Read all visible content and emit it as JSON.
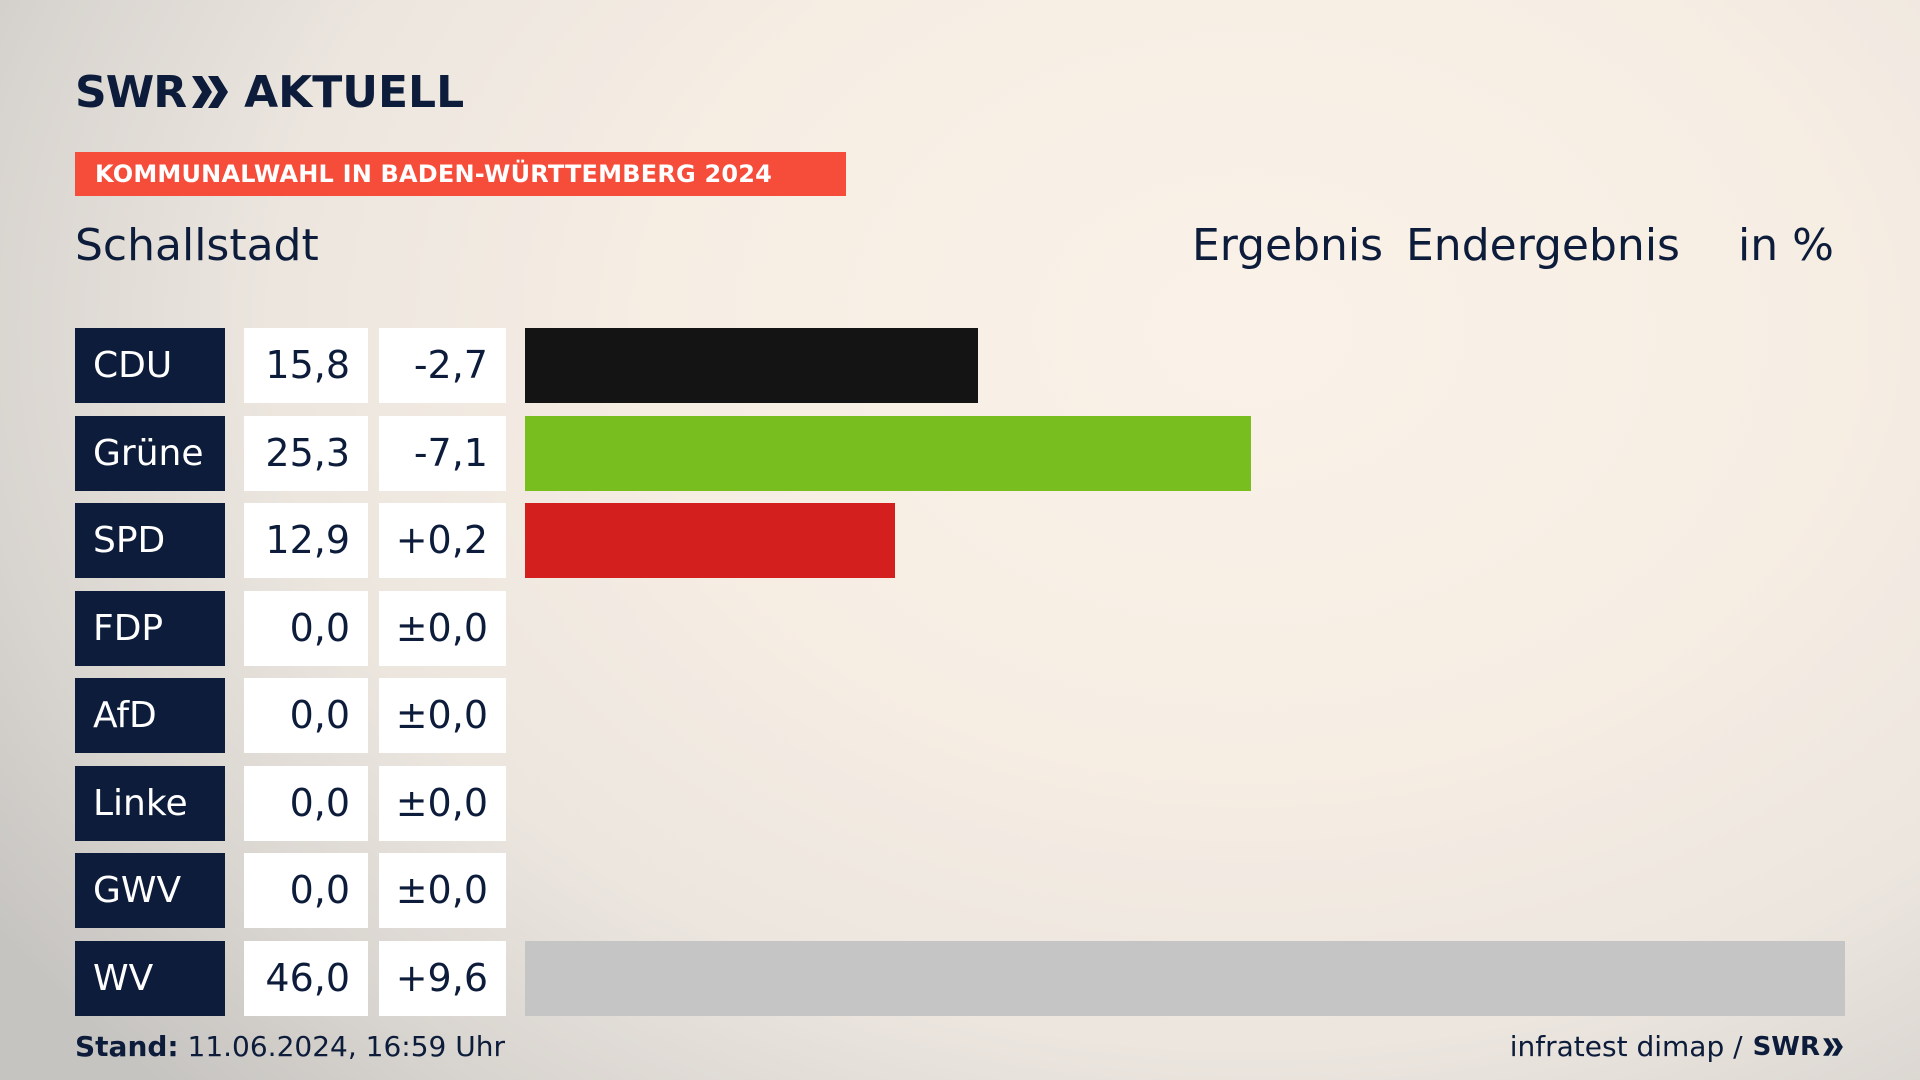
{
  "brand": {
    "logo_swr": "SWR",
    "logo_aktuell": "AKTUELL"
  },
  "banner": "KOMMUNALWAHL IN BADEN-WÜRTTEMBERG 2024",
  "header": {
    "place": "Schallstadt",
    "col_result": "Ergebnis",
    "col_status": "Endergebnis",
    "unit": "in %"
  },
  "colors": {
    "navy": "#0c1c3a",
    "banner": "#f64c3a"
  },
  "chart_data": {
    "type": "bar",
    "orientation": "horizontal",
    "categories": [
      "CDU",
      "Grüne",
      "SPD",
      "FDP",
      "AfD",
      "Linke",
      "GWV",
      "WV"
    ],
    "values": [
      15.8,
      25.3,
      12.9,
      0.0,
      0.0,
      0.0,
      0.0,
      46.0
    ],
    "value_labels": [
      "15,8",
      "25,3",
      "12,9",
      "0,0",
      "0,0",
      "0,0",
      "0,0",
      "46,0"
    ],
    "diff_labels": [
      "-2,7",
      "-7,1",
      "+0,2",
      "±0,0",
      "±0,0",
      "±0,0",
      "±0,0",
      "+9,6"
    ],
    "bar_colors": [
      "#141414",
      "#78be1e",
      "#d41f1f",
      "#ffd500",
      "#009ee0",
      "#be3075",
      "#c5c5c5",
      "#c5c5c5"
    ],
    "xlim": [
      0,
      46
    ],
    "grid": false,
    "legend": "none"
  },
  "footer": {
    "stand_label": "Stand:",
    "stand_value": " 11.06.2024, 16:59 Uhr",
    "source": "infratest dimap /",
    "source_brand": "SWR"
  }
}
